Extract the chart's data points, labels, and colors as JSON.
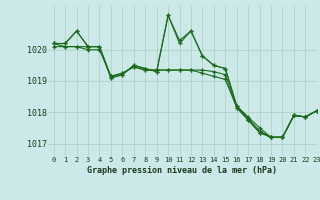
{
  "bg_color": "#cce8e8",
  "grid_color": "#b0d8c8",
  "line_color": "#1a6b1a",
  "xlabel": "Graphe pression niveau de la mer (hPa)",
  "xlim": [
    -0.5,
    23
  ],
  "ylim": [
    1016.6,
    1021.4
  ],
  "yticks": [
    1017,
    1018,
    1019,
    1020
  ],
  "xticks": [
    0,
    1,
    2,
    3,
    4,
    5,
    6,
    7,
    8,
    9,
    10,
    11,
    12,
    13,
    14,
    15,
    16,
    17,
    18,
    19,
    20,
    21,
    22,
    23
  ],
  "series": [
    [
      1020.2,
      1020.2,
      1020.6,
      1020.1,
      1020.1,
      1019.1,
      1019.2,
      1019.5,
      1019.4,
      1019.3,
      1021.1,
      1020.2,
      1020.6,
      1019.8,
      1019.5,
      1019.4,
      1018.2,
      1017.8,
      1017.4,
      1017.2,
      1017.2,
      1017.9,
      1017.85,
      1018.05
    ],
    [
      1020.2,
      1020.2,
      1020.6,
      1020.1,
      1020.1,
      1019.1,
      1019.2,
      1019.5,
      1019.4,
      1019.3,
      1021.1,
      1020.3,
      1020.6,
      1019.8,
      1019.5,
      1019.4,
      1018.2,
      1017.85,
      1017.5,
      1017.2,
      1017.2,
      1017.9,
      1017.85,
      1018.05
    ],
    [
      1020.1,
      1020.1,
      1020.1,
      1020.1,
      1020.1,
      1019.15,
      1019.25,
      1019.45,
      1019.35,
      1019.35,
      1019.35,
      1019.35,
      1019.35,
      1019.35,
      1019.3,
      1019.2,
      1018.15,
      1017.75,
      1017.35,
      1017.2,
      1017.2,
      1017.9,
      1017.85,
      1018.05
    ],
    [
      1020.2,
      1020.1,
      1020.1,
      1020.0,
      1020.0,
      1019.15,
      1019.25,
      1019.45,
      1019.35,
      1019.35,
      1019.35,
      1019.35,
      1019.35,
      1019.25,
      1019.15,
      1019.05,
      1018.15,
      1017.75,
      1017.35,
      1017.2,
      1017.2,
      1017.9,
      1017.85,
      1018.05
    ]
  ]
}
